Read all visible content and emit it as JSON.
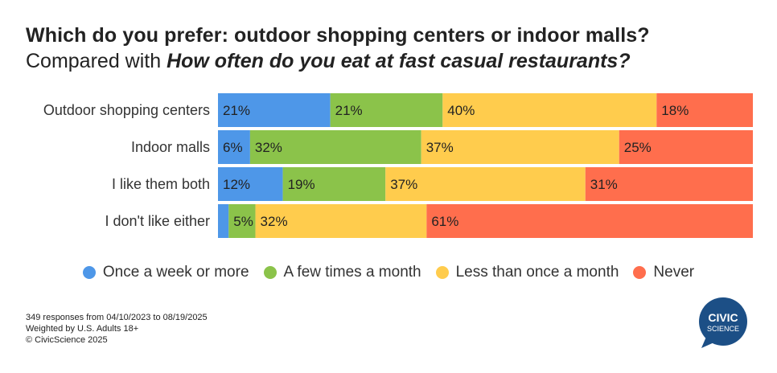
{
  "title": "Which do you prefer: outdoor shopping centers or indoor malls?",
  "subtitle_prefix": "Compared with ",
  "subtitle_emphasis": "How often do you eat at fast casual restaurants?",
  "chart_data": {
    "type": "bar",
    "orientation": "horizontal",
    "stacked": true,
    "normalized": true,
    "categories": [
      "Outdoor shopping centers",
      "Indoor malls",
      "I like them both",
      "I don't like either"
    ],
    "series": [
      {
        "name": "Once a week or more",
        "color": "#4e97e8",
        "values": [
          21,
          6,
          12,
          2
        ]
      },
      {
        "name": "A few times a month",
        "color": "#8bc34a",
        "values": [
          21,
          32,
          19,
          5
        ]
      },
      {
        "name": "Less than once a month",
        "color": "#ffcc4d",
        "values": [
          40,
          37,
          37,
          32
        ]
      },
      {
        "name": "Never",
        "color": "#ff6e4d",
        "values": [
          18,
          25,
          31,
          61
        ]
      }
    ],
    "labels": [
      [
        "21%",
        "21%",
        "40%",
        "18%"
      ],
      [
        "6%",
        "32%",
        "37%",
        "25%"
      ],
      [
        "12%",
        "19%",
        "37%",
        "31%"
      ],
      [
        "",
        "5%",
        "32%",
        "61%"
      ]
    ],
    "legend_position": "bottom",
    "grid": false
  },
  "footer": {
    "line1": "349 responses from 04/10/2023 to 08/19/2025",
    "line2": "Weighted by U.S. Adults 18+",
    "line3": "© CivicScience 2025"
  },
  "logo": {
    "line1": "CIVIC",
    "line2": "SCIENCE",
    "color": "#1c4f86"
  }
}
